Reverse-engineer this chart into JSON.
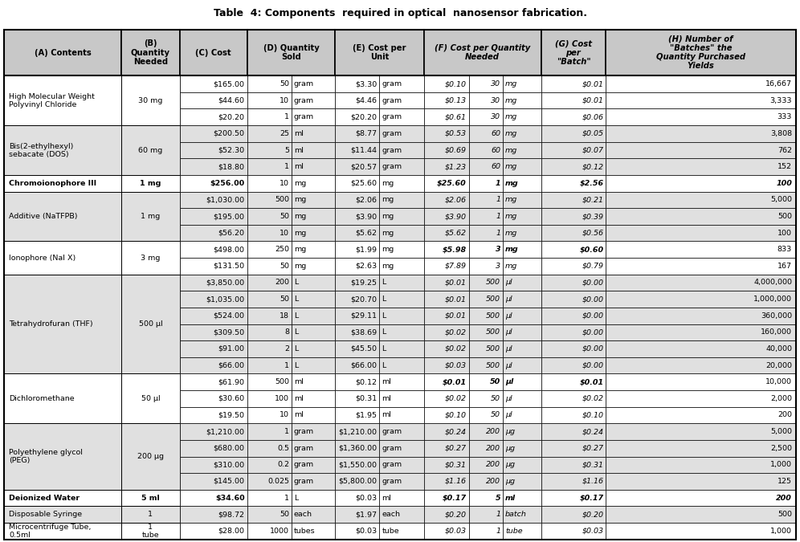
{
  "title": "Table  4: Components  required in optical  nanosensor fabrication.",
  "rows": [
    {
      "contents": "High Molecular Weight\nPolyvinyl Chloride",
      "qty_needed": "30 mg",
      "bold_group": false,
      "sub_rows": [
        [
          "$165.00",
          "50",
          "gram",
          "$3.30",
          "gram",
          "$0.10",
          "30",
          "mg",
          "$0.01",
          "16,667"
        ],
        [
          "$44.60",
          "10",
          "gram",
          "$4.46",
          "gram",
          "$0.13",
          "30",
          "mg",
          "$0.01",
          "3,333"
        ],
        [
          "$20.20",
          "1",
          "gram",
          "$20.20",
          "gram",
          "$0.61",
          "30",
          "mg",
          "$0.06",
          "333"
        ]
      ]
    },
    {
      "contents": "Bis(2-ethylhexyl)\nsebacate (DOS)",
      "qty_needed": "60 mg",
      "bold_group": false,
      "sub_rows": [
        [
          "$200.50",
          "25",
          "ml",
          "$8.77",
          "gram",
          "$0.53",
          "60",
          "mg",
          "$0.05",
          "3,808"
        ],
        [
          "$52.30",
          "5",
          "ml",
          "$11.44",
          "gram",
          "$0.69",
          "60",
          "mg",
          "$0.07",
          "762"
        ],
        [
          "$18.80",
          "1",
          "ml",
          "$20.57",
          "gram",
          "$1.23",
          "60",
          "mg",
          "$0.12",
          "152"
        ]
      ]
    },
    {
      "contents": "Chromoionophore III",
      "qty_needed": "1 mg",
      "bold_group": true,
      "sub_rows": [
        [
          "$256.00",
          "10",
          "mg",
          "$25.60",
          "mg",
          "$25.60",
          "1",
          "mg",
          "$2.56",
          "100"
        ]
      ]
    },
    {
      "contents": "Additive (NaTFPB)",
      "qty_needed": "1 mg",
      "bold_group": false,
      "sub_rows": [
        [
          "$1,030.00",
          "500",
          "mg",
          "$2.06",
          "mg",
          "$2.06",
          "1",
          "mg",
          "$0.21",
          "5,000"
        ],
        [
          "$195.00",
          "50",
          "mg",
          "$3.90",
          "mg",
          "$3.90",
          "1",
          "mg",
          "$0.39",
          "500"
        ],
        [
          "$56.20",
          "10",
          "mg",
          "$5.62",
          "mg",
          "$5.62",
          "1",
          "mg",
          "$0.56",
          "100"
        ]
      ]
    },
    {
      "contents": "Ionophore (NaI X)",
      "qty_needed": "3 mg",
      "bold_group": false,
      "sub_rows": [
        [
          "$498.00",
          "250",
          "mg",
          "$1.99",
          "mg",
          "$5.98",
          "3",
          "mg",
          "$0.60",
          "833"
        ],
        [
          "$131.50",
          "50",
          "mg",
          "$2.63",
          "mg",
          "$7.89",
          "3",
          "mg",
          "$0.79",
          "167"
        ]
      ]
    },
    {
      "contents": "Tetrahydrofuran (THF)",
      "qty_needed": "500 μl",
      "bold_group": false,
      "sub_rows": [
        [
          "$3,850.00",
          "200",
          "L",
          "$19.25",
          "L",
          "$0.01",
          "500",
          "μl",
          "$0.00",
          "4,000,000"
        ],
        [
          "$1,035.00",
          "50",
          "L",
          "$20.70",
          "L",
          "$0.01",
          "500",
          "μl",
          "$0.00",
          "1,000,000"
        ],
        [
          "$524.00",
          "18",
          "L",
          "$29.11",
          "L",
          "$0.01",
          "500",
          "μl",
          "$0.00",
          "360,000"
        ],
        [
          "$309.50",
          "8",
          "L",
          "$38.69",
          "L",
          "$0.02",
          "500",
          "μl",
          "$0.00",
          "160,000"
        ],
        [
          "$91.00",
          "2",
          "L",
          "$45.50",
          "L",
          "$0.02",
          "500",
          "μl",
          "$0.00",
          "40,000"
        ],
        [
          "$66.00",
          "1",
          "L",
          "$66.00",
          "L",
          "$0.03",
          "500",
          "μl",
          "$0.00",
          "20,000"
        ]
      ]
    },
    {
      "contents": "Dichloromethane",
      "qty_needed": "50 μl",
      "bold_group": false,
      "sub_rows": [
        [
          "$61.90",
          "500",
          "ml",
          "$0.12",
          "ml",
          "$0.01",
          "50",
          "μl",
          "$0.01",
          "10,000"
        ],
        [
          "$30.60",
          "100",
          "ml",
          "$0.31",
          "ml",
          "$0.02",
          "50",
          "μl",
          "$0.02",
          "2,000"
        ],
        [
          "$19.50",
          "10",
          "ml",
          "$1.95",
          "ml",
          "$0.10",
          "50",
          "μl",
          "$0.10",
          "200"
        ]
      ]
    },
    {
      "contents": "Polyethylene glycol\n(PEG)",
      "qty_needed": "200 μg",
      "bold_group": false,
      "sub_rows": [
        [
          "$1,210.00",
          "1",
          "gram",
          "$1,210.00",
          "gram",
          "$0.24",
          "200",
          "μg",
          "$0.24",
          "5,000"
        ],
        [
          "$680.00",
          "0.5",
          "gram",
          "$1,360.00",
          "gram",
          "$0.27",
          "200",
          "μg",
          "$0.27",
          "2,500"
        ],
        [
          "$310.00",
          "0.2",
          "gram",
          "$1,550.00",
          "gram",
          "$0.31",
          "200",
          "μg",
          "$0.31",
          "1,000"
        ],
        [
          "$145.00",
          "0.025",
          "gram",
          "$5,800.00",
          "gram",
          "$1.16",
          "200",
          "μg",
          "$1.16",
          "125"
        ]
      ]
    },
    {
      "contents": "Deionized Water",
      "qty_needed": "5 ml",
      "bold_group": true,
      "sub_rows": [
        [
          "$34.60",
          "1",
          "L",
          "$0.03",
          "ml",
          "$0.17",
          "5",
          "ml",
          "$0.17",
          "200"
        ]
      ]
    },
    {
      "contents": "Disposable Syringe",
      "qty_needed": "1",
      "bold_group": false,
      "sub_rows": [
        [
          "$98.72",
          "50",
          "each",
          "$1.97",
          "each",
          "$0.20",
          "1",
          "batch",
          "$0.20",
          "500"
        ]
      ]
    },
    {
      "contents": "Microcentrifuge Tube,\n0.5ml",
      "qty_needed": "1\ntube",
      "bold_group": false,
      "sub_rows": [
        [
          "$28.00",
          "1000",
          "tubes",
          "$0.03",
          "tube",
          "$0.03",
          "1",
          "tube",
          "$0.03",
          "1,000"
        ]
      ]
    }
  ],
  "col_bounds": [
    0.0,
    0.148,
    0.222,
    0.307,
    0.363,
    0.418,
    0.474,
    0.53,
    0.587,
    0.63,
    0.678,
    0.76,
    1.0
  ],
  "bg_header": "#c8c8c8",
  "bg_white": "#ffffff",
  "bg_gray": "#e0e0e0",
  "border_color": "#000000",
  "font_size": 6.8,
  "header_font_size": 7.2,
  "title_fontsize": 9.0
}
